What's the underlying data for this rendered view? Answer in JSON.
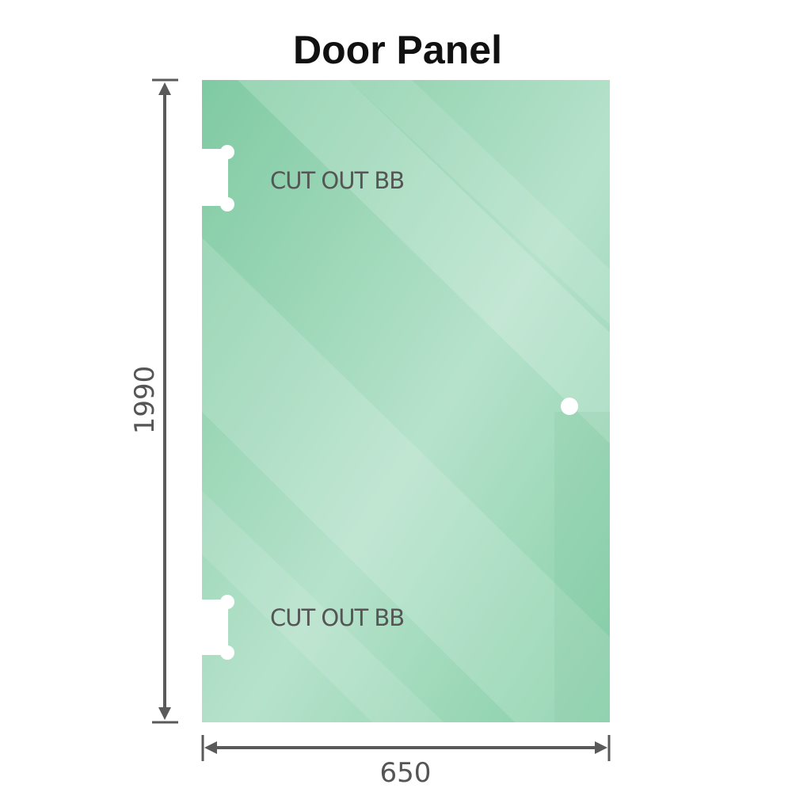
{
  "title": "Door Panel",
  "panel": {
    "color": "#86cfa8",
    "cutout_labels": [
      "CUT OUT BB",
      "CUT OUT BB"
    ],
    "height_label": "1990",
    "width_label": "650"
  },
  "colors": {
    "dimension_line": "#5a5a5a",
    "text": "#555555"
  }
}
